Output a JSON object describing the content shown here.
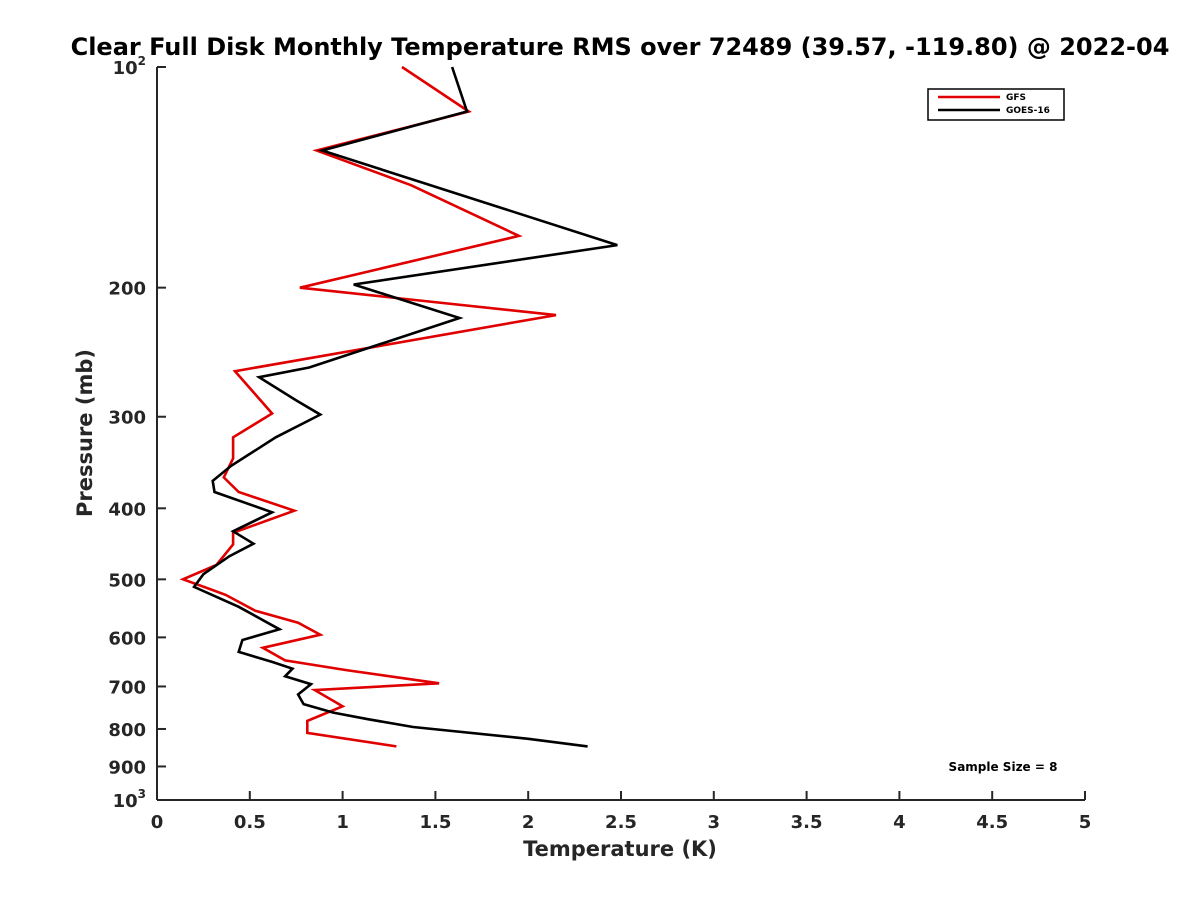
{
  "chart_data": {
    "type": "line",
    "title": "Clear Full Disk Monthly Temperature RMS over 72489 (39.57, -119.80) @ 2022-04",
    "xlabel": "Temperature (K)",
    "ylabel": "Pressure (mb)",
    "xlim": [
      0,
      5
    ],
    "ylim": [
      100,
      1000
    ],
    "y_scale": "log",
    "y_reversed": true,
    "x_ticks": [
      "0",
      "0.5",
      "1",
      "1.5",
      "2",
      "2.5",
      "3",
      "3.5",
      "4",
      "4.5",
      "5"
    ],
    "x_tick_values": [
      0,
      0.5,
      1,
      1.5,
      2,
      2.5,
      3,
      3.5,
      4,
      4.5,
      5
    ],
    "y_ticks": [
      {
        "value": 100,
        "base": "10",
        "exp": "2"
      },
      {
        "value": 200,
        "base": "200",
        "exp": ""
      },
      {
        "value": 300,
        "base": "300",
        "exp": ""
      },
      {
        "value": 400,
        "base": "400",
        "exp": ""
      },
      {
        "value": 500,
        "base": "500",
        "exp": ""
      },
      {
        "value": 600,
        "base": "600",
        "exp": ""
      },
      {
        "value": 700,
        "base": "700",
        "exp": ""
      },
      {
        "value": 800,
        "base": "800",
        "exp": ""
      },
      {
        "value": 900,
        "base": "900",
        "exp": ""
      },
      {
        "value": 1000,
        "base": "10",
        "exp": "3"
      }
    ],
    "legend_position": "top-right",
    "annotation": "Sample Size = 8",
    "series": [
      {
        "name": "GFS",
        "color": "#e00000",
        "points": [
          [
            1.32,
            100
          ],
          [
            1.68,
            115
          ],
          [
            0.86,
            130
          ],
          [
            1.37,
            145
          ],
          [
            1.95,
            170
          ],
          [
            0.77,
            200
          ],
          [
            2.15,
            218
          ],
          [
            0.42,
            260
          ],
          [
            0.62,
            297
          ],
          [
            0.41,
            320
          ],
          [
            0.41,
            342
          ],
          [
            0.36,
            363
          ],
          [
            0.44,
            380
          ],
          [
            0.74,
            403
          ],
          [
            0.41,
            432
          ],
          [
            0.41,
            448
          ],
          [
            0.32,
            478
          ],
          [
            0.14,
            500
          ],
          [
            0.29,
            516
          ],
          [
            0.37,
            525
          ],
          [
            0.53,
            552
          ],
          [
            0.76,
            573
          ],
          [
            0.88,
            595
          ],
          [
            0.57,
            620
          ],
          [
            0.69,
            645
          ],
          [
            1.02,
            665
          ],
          [
            1.52,
            693
          ],
          [
            0.85,
            708
          ],
          [
            1.0,
            745
          ],
          [
            0.81,
            780
          ],
          [
            0.81,
            810
          ],
          [
            1.29,
            845
          ]
        ]
      },
      {
        "name": "GOES-16",
        "color": "#000000",
        "points": [
          [
            1.59,
            100
          ],
          [
            1.67,
            115
          ],
          [
            0.89,
            130
          ],
          [
            2.48,
            175
          ],
          [
            1.06,
            198
          ],
          [
            1.63,
            220
          ],
          [
            0.82,
            257
          ],
          [
            0.55,
            265
          ],
          [
            0.75,
            285
          ],
          [
            0.88,
            298
          ],
          [
            0.64,
            320
          ],
          [
            0.4,
            350
          ],
          [
            0.3,
            367
          ],
          [
            0.31,
            380
          ],
          [
            0.62,
            405
          ],
          [
            0.41,
            430
          ],
          [
            0.52,
            447
          ],
          [
            0.39,
            465
          ],
          [
            0.25,
            492
          ],
          [
            0.2,
            512
          ],
          [
            0.44,
            545
          ],
          [
            0.66,
            585
          ],
          [
            0.46,
            605
          ],
          [
            0.44,
            628
          ],
          [
            0.62,
            648
          ],
          [
            0.73,
            662
          ],
          [
            0.69,
            678
          ],
          [
            0.83,
            695
          ],
          [
            0.76,
            718
          ],
          [
            0.79,
            740
          ],
          [
            0.95,
            760
          ],
          [
            1.14,
            776
          ],
          [
            1.38,
            795
          ],
          [
            2.0,
            825
          ],
          [
            2.32,
            845
          ]
        ]
      }
    ]
  }
}
